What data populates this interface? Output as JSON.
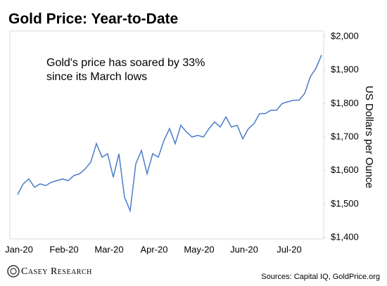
{
  "chart_data": {
    "type": "line",
    "title": "Gold Price: Year-to-Date",
    "annotation": [
      "Gold's price has soared by 33%",
      "since its March lows"
    ],
    "y_label": "US Dollars per Ounce",
    "source": "Sources: Capital IQ, GoldPrice.org",
    "logo": "Casey Research",
    "categories": [
      "Jan-20",
      null,
      null,
      null,
      null,
      null,
      null,
      null,
      "Feb-20",
      null,
      null,
      null,
      null,
      null,
      null,
      null,
      "Mar-20",
      null,
      null,
      null,
      null,
      null,
      null,
      null,
      "Apr-20",
      null,
      null,
      null,
      null,
      null,
      null,
      null,
      "May-20",
      null,
      null,
      null,
      null,
      null,
      null,
      null,
      "Jun-20",
      null,
      null,
      null,
      null,
      null,
      null,
      null,
      "Jul-20",
      null,
      null,
      null,
      null,
      null,
      null
    ],
    "values": [
      1528,
      1560,
      1575,
      1550,
      1560,
      1555,
      1565,
      1570,
      1575,
      1570,
      1585,
      1590,
      1605,
      1625,
      1680,
      1640,
      1650,
      1580,
      1650,
      1520,
      1480,
      1620,
      1660,
      1590,
      1650,
      1640,
      1690,
      1725,
      1680,
      1735,
      1715,
      1700,
      1705,
      1700,
      1725,
      1745,
      1730,
      1760,
      1730,
      1735,
      1695,
      1725,
      1740,
      1770,
      1770,
      1780,
      1780,
      1800,
      1805,
      1810,
      1810,
      1830,
      1880,
      1905,
      1945
    ],
    "color": "#4a7cc9",
    "ylim": [
      1400,
      2000
    ],
    "yticks": [
      {
        "value": 1400,
        "label": "$1,400"
      },
      {
        "value": 1500,
        "label": "$1,500"
      },
      {
        "value": 1600,
        "label": "$1,600"
      },
      {
        "value": 1700,
        "label": "$1,700"
      },
      {
        "value": 1800,
        "label": "$1,800"
      },
      {
        "value": 1900,
        "label": "$1,900"
      },
      {
        "value": 2000,
        "label": "$2,000"
      }
    ],
    "grid": false
  }
}
